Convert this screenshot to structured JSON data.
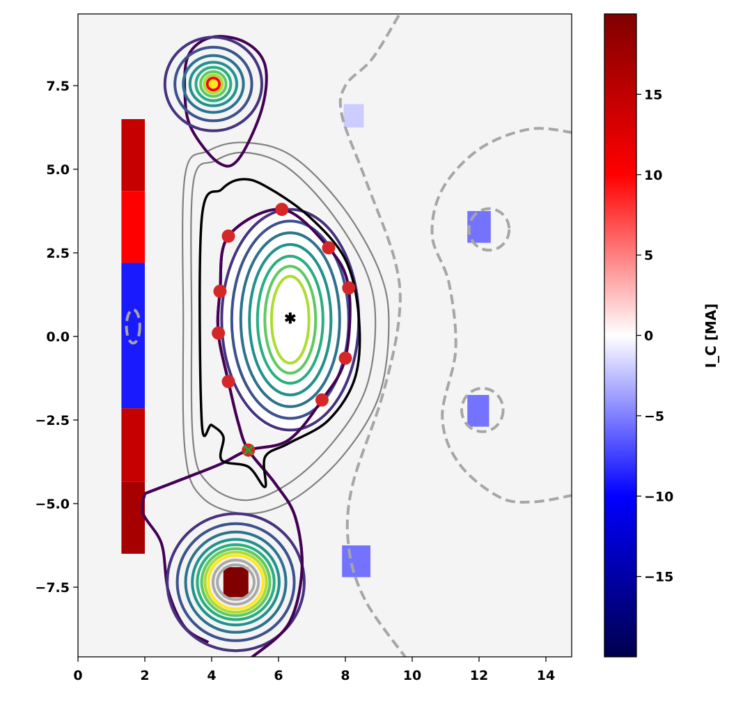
{
  "chart_data": {
    "type": "contour",
    "title": "",
    "xlabel": "",
    "ylabel": "",
    "xlim": [
      0,
      14.77
    ],
    "ylim": [
      -9.58,
      9.65
    ],
    "background": "#f4f4f4",
    "xticks": [
      0,
      2,
      4,
      6,
      8,
      10,
      12,
      14
    ],
    "xtick_labels": [
      "0",
      "2",
      "4",
      "6",
      "8",
      "10",
      "12",
      "14"
    ],
    "yticks": [
      7.5,
      5.0,
      2.5,
      0.0,
      -2.5,
      -5.0,
      -7.5
    ],
    "ytick_labels": [
      "7.5",
      "5.0",
      "2.5",
      "0.0",
      "−2.5",
      "−5.0",
      "−7.5"
    ],
    "colorbar": {
      "label": "I_C [MA]",
      "label_main": "I",
      "label_sub": "C",
      "label_unit": " [MA]",
      "colormap": "seismic",
      "range": [
        -20,
        20
      ],
      "ticks": [
        15,
        10,
        5,
        0,
        -5,
        -10,
        -15
      ],
      "tick_labels": [
        "15",
        "10",
        "5",
        "0",
        "−5",
        "−10",
        "−15"
      ]
    },
    "coils": [
      {
        "name": "cs-1",
        "x": [
          1.3,
          2.0
        ],
        "y": [
          4.35,
          6.5
        ],
        "current": 14.5
      },
      {
        "name": "cs-2",
        "x": [
          1.3,
          2.0
        ],
        "y": [
          2.2,
          4.35
        ],
        "current": 10
      },
      {
        "name": "cs-3",
        "x": [
          1.3,
          2.0
        ],
        "y": [
          0.0,
          2.2
        ],
        "current": -9
      },
      {
        "name": "cs-4",
        "x": [
          1.3,
          2.0
        ],
        "y": [
          -2.15,
          0.0
        ],
        "current": -9
      },
      {
        "name": "cs-5",
        "x": [
          1.3,
          2.0
        ],
        "y": [
          -4.35,
          -2.15
        ],
        "current": 14.5
      },
      {
        "name": "cs-6",
        "x": [
          1.3,
          2.0
        ],
        "y": [
          -6.5,
          -4.35
        ],
        "current": 17
      },
      {
        "name": "pf-1",
        "x": [
          7.95,
          8.55
        ],
        "y": [
          6.25,
          6.95
        ],
        "current": -2
      },
      {
        "name": "pf-2",
        "x": [
          11.65,
          12.35
        ],
        "y": [
          2.8,
          3.75
        ],
        "current": -5.5
      },
      {
        "name": "pf-3",
        "x": [
          11.65,
          12.3
        ],
        "y": [
          -2.7,
          -1.75
        ],
        "current": -5.5
      },
      {
        "name": "pf-4",
        "x": [
          7.9,
          8.75
        ],
        "y": [
          -7.2,
          -6.25
        ],
        "current": -5.5
      },
      {
        "name": "div-coil",
        "x": [
          4.35,
          5.1
        ],
        "y": [
          -7.8,
          -6.9
        ],
        "current": 20
      }
    ],
    "control_points": [
      [
        4.5,
        3.0
      ],
      [
        6.1,
        3.8
      ],
      [
        7.5,
        2.65
      ],
      [
        8.1,
        1.45
      ],
      [
        4.25,
        1.35
      ],
      [
        4.2,
        0.1
      ],
      [
        4.5,
        -1.35
      ],
      [
        7.3,
        -1.9
      ],
      [
        8.0,
        -0.65
      ],
      [
        5.1,
        -3.4
      ]
    ],
    "x_point": [
      5.1,
      -3.4
    ],
    "magnetic_axis": [
      6.35,
      0.55
    ],
    "plasma_contours": [
      {
        "rx": 2.05,
        "ry": 3.3,
        "color": "#46327e"
      },
      {
        "rx": 1.75,
        "ry": 2.95,
        "color": "#3b528b"
      },
      {
        "rx": 1.48,
        "ry": 2.6,
        "color": "#2c728e"
      },
      {
        "rx": 1.22,
        "ry": 2.25,
        "color": "#21918c"
      },
      {
        "rx": 0.98,
        "ry": 1.9,
        "color": "#28ae80"
      },
      {
        "rx": 0.76,
        "ry": 1.6,
        "color": "#5ec962"
      },
      {
        "rx": 0.56,
        "ry": 1.3,
        "color": "#addc30"
      }
    ],
    "plasma_center": [
      6.35,
      0.5
    ],
    "top_coil_center": [
      4.05,
      7.55
    ],
    "top_coil_contours": [
      {
        "rx": 1.45,
        "ry": 1.4,
        "color": "#46327e"
      },
      {
        "rx": 1.15,
        "ry": 1.1,
        "color": "#3b528b"
      },
      {
        "rx": 0.9,
        "ry": 0.85,
        "color": "#2c728e"
      },
      {
        "rx": 0.7,
        "ry": 0.65,
        "color": "#21918c"
      },
      {
        "rx": 0.52,
        "ry": 0.5,
        "color": "#28ae80"
      },
      {
        "rx": 0.38,
        "ry": 0.37,
        "color": "#5ec962"
      },
      {
        "rx": 0.27,
        "ry": 0.27,
        "color": "#addc30"
      },
      {
        "rx": 0.18,
        "ry": 0.18,
        "color": "#ff0000"
      },
      {
        "rx": 0.1,
        "ry": 0.1,
        "color": "#fde725"
      }
    ],
    "bottom_coil_center": [
      4.72,
      -7.35
    ],
    "bottom_coil_contours": [
      {
        "rx": 2.05,
        "ry": 2.05,
        "color": "#46327e"
      },
      {
        "rx": 1.75,
        "ry": 1.75,
        "color": "#3b528b"
      },
      {
        "rx": 1.5,
        "ry": 1.5,
        "color": "#2c728e"
      },
      {
        "rx": 1.3,
        "ry": 1.28,
        "color": "#21918c"
      },
      {
        "rx": 1.15,
        "ry": 1.12,
        "color": "#28ae80"
      },
      {
        "rx": 1.02,
        "ry": 1.0,
        "color": "#5ec962"
      },
      {
        "rx": 0.92,
        "ry": 0.9,
        "color": "#addc30"
      },
      {
        "rx": 0.82,
        "ry": 0.8,
        "color": "#fde725"
      },
      {
        "rx": 0.68,
        "ry": 0.66,
        "color": "#a9a9a9"
      },
      {
        "rx": 0.55,
        "ry": 0.52,
        "color": "#a9a9a9"
      }
    ],
    "top_coil_outer": [
      [
        3.3,
        8.4
      ],
      [
        4.0,
        8.95
      ],
      [
        5.0,
        8.8
      ],
      [
        5.6,
        8.1
      ],
      [
        5.5,
        6.8
      ],
      [
        4.8,
        5.3
      ],
      [
        4.2,
        5.2
      ],
      [
        3.4,
        6.2
      ],
      [
        3.2,
        7.2
      ]
    ],
    "separatrix": [
      [
        2.0,
        -4.7
      ],
      [
        3.3,
        -4.2
      ],
      [
        4.3,
        -3.8
      ],
      [
        5.1,
        -3.4
      ],
      [
        6.3,
        -3.1
      ],
      [
        7.3,
        -1.9
      ],
      [
        8.0,
        -0.65
      ],
      [
        8.1,
        1.45
      ],
      [
        7.5,
        2.65
      ],
      [
        6.1,
        3.8
      ],
      [
        4.5,
        3.0
      ],
      [
        4.25,
        1.35
      ],
      [
        4.2,
        0.1
      ],
      [
        4.5,
        -1.35
      ],
      [
        4.8,
        -2.6
      ],
      [
        5.1,
        -3.4
      ],
      [
        5.9,
        -4.4
      ],
      [
        6.5,
        -5.4
      ],
      [
        6.7,
        -7.0
      ],
      [
        6.3,
        -8.6
      ],
      [
        5.2,
        -9.6
      ]
    ],
    "bottom_outer": [
      [
        2.0,
        -4.7
      ],
      [
        1.95,
        -5.3
      ],
      [
        2.5,
        -6.2
      ],
      [
        2.7,
        -7.6
      ],
      [
        3.2,
        -8.7
      ],
      [
        3.9,
        -9.15
      ]
    ],
    "wall": [
      [
        3.7,
        -2.5
      ],
      [
        3.7,
        3.5
      ],
      [
        4.3,
        4.4
      ],
      [
        4.9,
        4.7
      ],
      [
        5.6,
        4.5
      ],
      [
        6.9,
        3.6
      ],
      [
        8.0,
        2.3
      ],
      [
        8.4,
        0.6
      ],
      [
        8.3,
        -1.2
      ],
      [
        7.5,
        -2.5
      ],
      [
        6.3,
        -3.2
      ],
      [
        5.6,
        -3.6
      ],
      [
        5.6,
        -4.5
      ],
      [
        5.1,
        -3.9
      ],
      [
        4.3,
        -3.7
      ],
      [
        4.35,
        -3.0
      ],
      [
        4.0,
        -2.65
      ]
    ],
    "gray_contours": [
      [
        [
          3.45,
          4.6
        ],
        [
          4.1,
          5.25
        ],
        [
          5.0,
          5.5
        ],
        [
          6.2,
          5.1
        ],
        [
          7.5,
          3.8
        ],
        [
          8.6,
          2.0
        ],
        [
          8.9,
          0.4
        ],
        [
          8.6,
          -1.6
        ],
        [
          7.6,
          -3.2
        ],
        [
          6.3,
          -4.4
        ],
        [
          5.0,
          -4.9
        ],
        [
          3.9,
          -4.4
        ],
        [
          3.45,
          -3.2
        ],
        [
          3.4,
          0.5
        ]
      ],
      [
        [
          3.2,
          4.8
        ],
        [
          3.9,
          5.55
        ],
        [
          5.0,
          5.8
        ],
        [
          6.4,
          5.4
        ],
        [
          7.9,
          3.9
        ],
        [
          9.0,
          2.0
        ],
        [
          9.3,
          0.4
        ],
        [
          9.0,
          -1.8
        ],
        [
          7.9,
          -3.6
        ],
        [
          6.4,
          -4.9
        ],
        [
          5.0,
          -5.3
        ],
        [
          3.7,
          -4.8
        ],
        [
          3.2,
          -3.4
        ],
        [
          3.15,
          0.5
        ]
      ]
    ],
    "zero_contours": {
      "open": [
        [
          [
            9.6,
            9.6
          ],
          [
            8.8,
            8.3
          ],
          [
            8.0,
            7.5
          ],
          [
            7.9,
            6.6
          ],
          [
            8.6,
            4.7
          ],
          [
            9.5,
            2.2
          ],
          [
            9.6,
            0.5
          ],
          [
            9.1,
            -1.8
          ],
          [
            8.2,
            -4.5
          ],
          [
            8.1,
            -6.3
          ],
          [
            8.6,
            -7.9
          ],
          [
            9.8,
            -9.6
          ]
        ],
        [
          [
            14.8,
            6.1
          ],
          [
            13.5,
            6.2
          ],
          [
            12.0,
            5.6
          ],
          [
            10.9,
            4.4
          ],
          [
            10.6,
            3.0
          ],
          [
            11.1,
            1.6
          ],
          [
            11.3,
            -0.4
          ],
          [
            10.9,
            -2.4
          ],
          [
            11.4,
            -3.8
          ],
          [
            12.6,
            -4.8
          ],
          [
            13.6,
            -4.95
          ],
          [
            14.8,
            -4.75
          ]
        ]
      ],
      "closed": [
        {
          "cx": 12.3,
          "cy": 3.2,
          "rx": 0.6,
          "ry": 0.62
        },
        {
          "cx": 12.1,
          "cy": -2.2,
          "rx": 0.62,
          "ry": 0.65
        },
        {
          "cx": 1.65,
          "cy": 0.3,
          "rx": 0.2,
          "ry": 0.5
        }
      ]
    }
  }
}
